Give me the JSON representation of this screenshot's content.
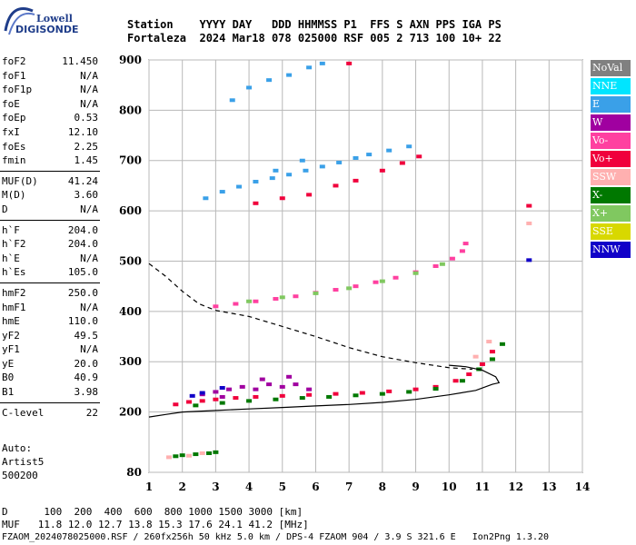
{
  "logo": {
    "line1": "Lowell",
    "line2": "DIGISONDE"
  },
  "header": {
    "line1": "Station    YYYY DAY   DDD HHMMSS P1  FFS S AXN PPS IGA PS",
    "line2": "Fortaleza  2024 Mar18 078 025000 RSF 005 2 713 100 10+ 22"
  },
  "params": [
    [
      {
        "k": "foF2",
        "v": "11.450"
      },
      {
        "k": "foF1",
        "v": "N/A"
      },
      {
        "k": "foF1p",
        "v": "N/A"
      },
      {
        "k": "foE",
        "v": "N/A"
      },
      {
        "k": "foEp",
        "v": "0.53"
      },
      {
        "k": "fxI",
        "v": "12.10"
      },
      {
        "k": "foEs",
        "v": "2.25"
      },
      {
        "k": "fmin",
        "v": "1.45"
      }
    ],
    [
      {
        "k": "MUF(D)",
        "v": "41.24"
      },
      {
        "k": "M(D)",
        "v": "3.60"
      },
      {
        "k": "D",
        "v": "N/A"
      }
    ],
    [
      {
        "k": "h`F",
        "v": "204.0"
      },
      {
        "k": "h`F2",
        "v": "204.0"
      },
      {
        "k": "h`E",
        "v": "N/A"
      },
      {
        "k": "h`Es",
        "v": "105.0"
      }
    ],
    [
      {
        "k": "hmF2",
        "v": "250.0"
      },
      {
        "k": "hmF1",
        "v": "N/A"
      },
      {
        "k": "hmE",
        "v": "110.0"
      },
      {
        "k": "yF2",
        "v": "49.5"
      },
      {
        "k": "yF1",
        "v": "N/A"
      },
      {
        "k": "yE",
        "v": "20.0"
      },
      {
        "k": "B0",
        "v": "40.9"
      },
      {
        "k": "B1",
        "v": "3.98"
      }
    ],
    [
      {
        "k": "C-level",
        "v": "22"
      }
    ]
  ],
  "auto": {
    "line1": "Auto:",
    "line2": "Artist5",
    "line3": "500200"
  },
  "legend": [
    {
      "label": "NoVal",
      "color": "#808080"
    },
    {
      "label": "NNE",
      "color": "#00e5ff"
    },
    {
      "label": "E",
      "color": "#3aa0e8"
    },
    {
      "label": "W",
      "color": "#a000a0"
    },
    {
      "label": "Vo-",
      "color": "#ff40a0"
    },
    {
      "label": "Vo+",
      "color": "#f0003c"
    },
    {
      "label": "SSW",
      "color": "#ffb0b0"
    },
    {
      "label": "X-",
      "color": "#007800"
    },
    {
      "label": "X+",
      "color": "#80c860"
    },
    {
      "label": "SSE",
      "color": "#d8d800"
    },
    {
      "label": "NNW",
      "color": "#1000c8"
    }
  ],
  "bottom": {
    "line1": "D      100  200  400  600  800 1000 1500 3000 [km]",
    "line2": "MUF   11.8 12.0 12.7 13.8 15.3 17.6 24.1 41.2 [MHz]",
    "line3": "FZAOM_2024078025000.RSF / 260fx256h 50 kHz 5.0 km / DPS-4 FZAOM 904 / 3.9 S 321.6 E   Ion2Png 1.3.20"
  },
  "chart_data": {
    "type": "scatter",
    "x_ticks": [
      "1",
      "2",
      "3",
      "4",
      "5",
      "6",
      "7",
      "8",
      "9",
      "10",
      "11",
      "12",
      "13",
      "14"
    ],
    "y_ticks": [
      "80",
      "200",
      "300",
      "400",
      "500",
      "600",
      "700",
      "800",
      "900"
    ],
    "xlim": [
      1,
      14
    ],
    "ylim": [
      80,
      900
    ],
    "grid": true,
    "series": [
      {
        "color": "#a000a0",
        "points": [
          [
            2.6,
            235
          ],
          [
            3.0,
            240
          ],
          [
            3.4,
            245
          ],
          [
            3.8,
            250
          ],
          [
            4.2,
            245
          ],
          [
            4.6,
            255
          ],
          [
            5.0,
            250
          ],
          [
            5.4,
            255
          ],
          [
            5.8,
            245
          ],
          [
            4.4,
            265
          ],
          [
            3.2,
            230
          ],
          [
            5.2,
            270
          ]
        ]
      },
      {
        "color": "#f0003c",
        "points": [
          [
            1.8,
            215
          ],
          [
            2.2,
            220
          ],
          [
            2.6,
            222
          ],
          [
            3.0,
            225
          ],
          [
            3.6,
            228
          ],
          [
            4.2,
            230
          ],
          [
            5.0,
            232
          ],
          [
            5.8,
            234
          ],
          [
            6.6,
            236
          ],
          [
            7.4,
            238
          ],
          [
            8.2,
            241
          ],
          [
            9.0,
            245
          ],
          [
            9.6,
            250
          ],
          [
            10.2,
            262
          ],
          [
            10.6,
            275
          ],
          [
            11.0,
            295
          ],
          [
            11.3,
            320
          ]
        ]
      },
      {
        "color": "#007800",
        "points": [
          [
            2.4,
            213
          ],
          [
            3.2,
            218
          ],
          [
            4.0,
            222
          ],
          [
            4.8,
            225
          ],
          [
            5.6,
            228
          ],
          [
            6.4,
            230
          ],
          [
            7.2,
            233
          ],
          [
            8.0,
            236
          ],
          [
            8.8,
            240
          ],
          [
            9.6,
            246
          ],
          [
            10.4,
            262
          ],
          [
            10.9,
            285
          ],
          [
            11.3,
            305
          ],
          [
            11.6,
            335
          ]
        ]
      },
      {
        "color": "#ff40a0",
        "points": [
          [
            3.0,
            410
          ],
          [
            3.6,
            415
          ],
          [
            4.2,
            420
          ],
          [
            4.8,
            425
          ],
          [
            5.4,
            430
          ],
          [
            6.0,
            437
          ],
          [
            6.6,
            443
          ],
          [
            7.2,
            450
          ],
          [
            7.8,
            458
          ],
          [
            8.4,
            467
          ],
          [
            9.0,
            478
          ],
          [
            9.6,
            490
          ],
          [
            10.1,
            505
          ],
          [
            10.4,
            520
          ],
          [
            10.5,
            535
          ]
        ]
      },
      {
        "color": "#80c860",
        "points": [
          [
            4.0,
            420
          ],
          [
            5.0,
            428
          ],
          [
            6.0,
            436
          ],
          [
            7.0,
            446
          ],
          [
            8.0,
            460
          ],
          [
            9.0,
            476
          ],
          [
            9.8,
            494
          ]
        ]
      },
      {
        "color": "#3aa0e8",
        "points": [
          [
            2.7,
            625
          ],
          [
            3.2,
            638
          ],
          [
            3.7,
            648
          ],
          [
            4.2,
            658
          ],
          [
            4.7,
            665
          ],
          [
            5.2,
            672
          ],
          [
            5.7,
            680
          ],
          [
            6.2,
            688
          ],
          [
            6.7,
            696
          ],
          [
            7.2,
            705
          ],
          [
            7.6,
            712
          ],
          [
            8.2,
            720
          ],
          [
            8.8,
            728
          ],
          [
            4.8,
            680
          ],
          [
            5.6,
            700
          ],
          [
            3.5,
            820
          ],
          [
            4.0,
            845
          ],
          [
            4.6,
            860
          ],
          [
            5.2,
            870
          ],
          [
            5.8,
            885
          ],
          [
            6.2,
            893
          ]
        ]
      },
      {
        "color": "#f0003c",
        "points": [
          [
            4.2,
            615
          ],
          [
            5.0,
            625
          ],
          [
            5.8,
            632
          ],
          [
            6.6,
            650
          ],
          [
            7.2,
            660
          ],
          [
            8.0,
            680
          ],
          [
            8.6,
            695
          ],
          [
            9.1,
            708
          ],
          [
            12.4,
            610
          ],
          [
            7.0,
            893
          ]
        ]
      },
      {
        "color": "#007800",
        "points": [
          [
            1.8,
            112
          ],
          [
            2.0,
            114
          ],
          [
            2.4,
            116
          ],
          [
            2.8,
            118
          ],
          [
            3.0,
            120
          ]
        ]
      },
      {
        "color": "#ffb0b0",
        "points": [
          [
            1.6,
            110
          ],
          [
            2.2,
            113
          ],
          [
            2.6,
            118
          ],
          [
            10.8,
            310
          ],
          [
            11.2,
            340
          ],
          [
            12.4,
            575
          ]
        ]
      },
      {
        "color": "#1000c8",
        "points": [
          [
            2.6,
            238
          ],
          [
            3.2,
            248
          ],
          [
            2.3,
            232
          ],
          [
            12.4,
            502
          ]
        ]
      }
    ],
    "curves": [
      {
        "style": "dashed",
        "points": [
          [
            1,
            495
          ],
          [
            1.5,
            470
          ],
          [
            2,
            440
          ],
          [
            2.5,
            415
          ],
          [
            3,
            402
          ],
          [
            4,
            390
          ],
          [
            5,
            370
          ],
          [
            6,
            350
          ],
          [
            7,
            328
          ],
          [
            8,
            310
          ],
          [
            9,
            298
          ],
          [
            10,
            288
          ],
          [
            10.7,
            285
          ]
        ]
      },
      {
        "style": "solid",
        "points": [
          [
            1,
            190
          ],
          [
            1.5,
            195
          ],
          [
            2,
            200
          ],
          [
            3,
            203
          ],
          [
            4,
            206
          ],
          [
            5,
            209
          ],
          [
            6,
            212
          ],
          [
            7,
            215
          ],
          [
            8,
            219
          ],
          [
            9,
            225
          ],
          [
            10,
            234
          ],
          [
            10.8,
            243
          ],
          [
            11.3,
            255
          ],
          [
            11.5,
            258
          ],
          [
            11.4,
            270
          ],
          [
            11.0,
            283
          ],
          [
            10.5,
            290
          ],
          [
            10.0,
            293
          ]
        ]
      }
    ]
  }
}
